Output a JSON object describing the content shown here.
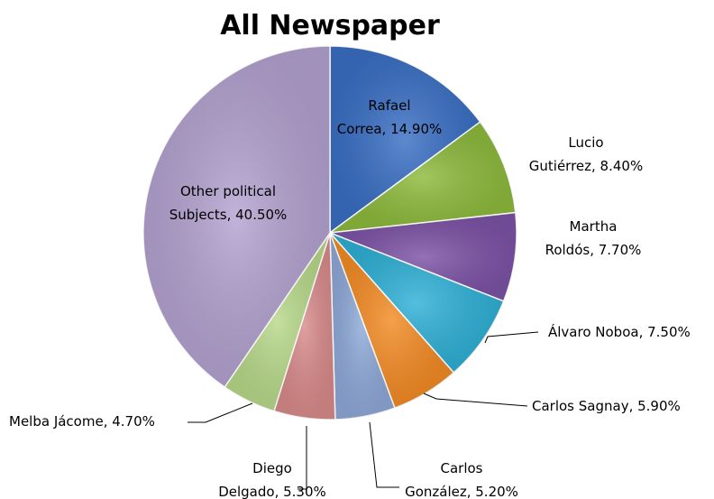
{
  "chart_data": {
    "type": "pie",
    "title": "All Newspaper",
    "slices": [
      {
        "name": "Rafael Correa",
        "value": 14.9,
        "label_lines": [
          "Rafael",
          "Correa, 14.90%"
        ],
        "color": "#3a6fc4"
      },
      {
        "name": "Lucio Gutiérrez",
        "value": 8.4,
        "label_lines": [
          "Lucio",
          "Gutiérrez, 8.40%"
        ],
        "color": "#8dba3c"
      },
      {
        "name": "Martha Roldós",
        "value": 7.7,
        "label_lines": [
          "Martha",
          "Roldós, 7.70%"
        ],
        "color": "#7d53a6"
      },
      {
        "name": "Álvaro Noboa",
        "value": 7.5,
        "label_lines": [
          "Álvaro Noboa, 7.50%"
        ],
        "color": "#2fb0d6"
      },
      {
        "name": "Carlos Sagnay",
        "value": 5.9,
        "label_lines": [
          "Carlos Sagnay,  5.90%"
        ],
        "color": "#f38b25"
      },
      {
        "name": "Carlos González",
        "value": 5.2,
        "label_lines": [
          "Carlos",
          "González, 5.20%"
        ],
        "color": "#8ea9d8"
      },
      {
        "name": "Diego Delgado",
        "value": 5.3,
        "label_lines": [
          "Diego",
          "Delgado, 5.30%"
        ],
        "color": "#d98b8b"
      },
      {
        "name": "Melba Jácome",
        "value": 4.7,
        "label_lines": [
          "Melba Jácome,  4.70%"
        ],
        "color": "#b8d98a"
      },
      {
        "name": "Other political Subjects",
        "value": 40.5,
        "label_lines": [
          "Other political",
          "Subjects, 40.50%"
        ],
        "color": "#b3a2d0"
      }
    ],
    "legend": "none",
    "start_angle_deg": 0,
    "direction": "clockwise"
  }
}
